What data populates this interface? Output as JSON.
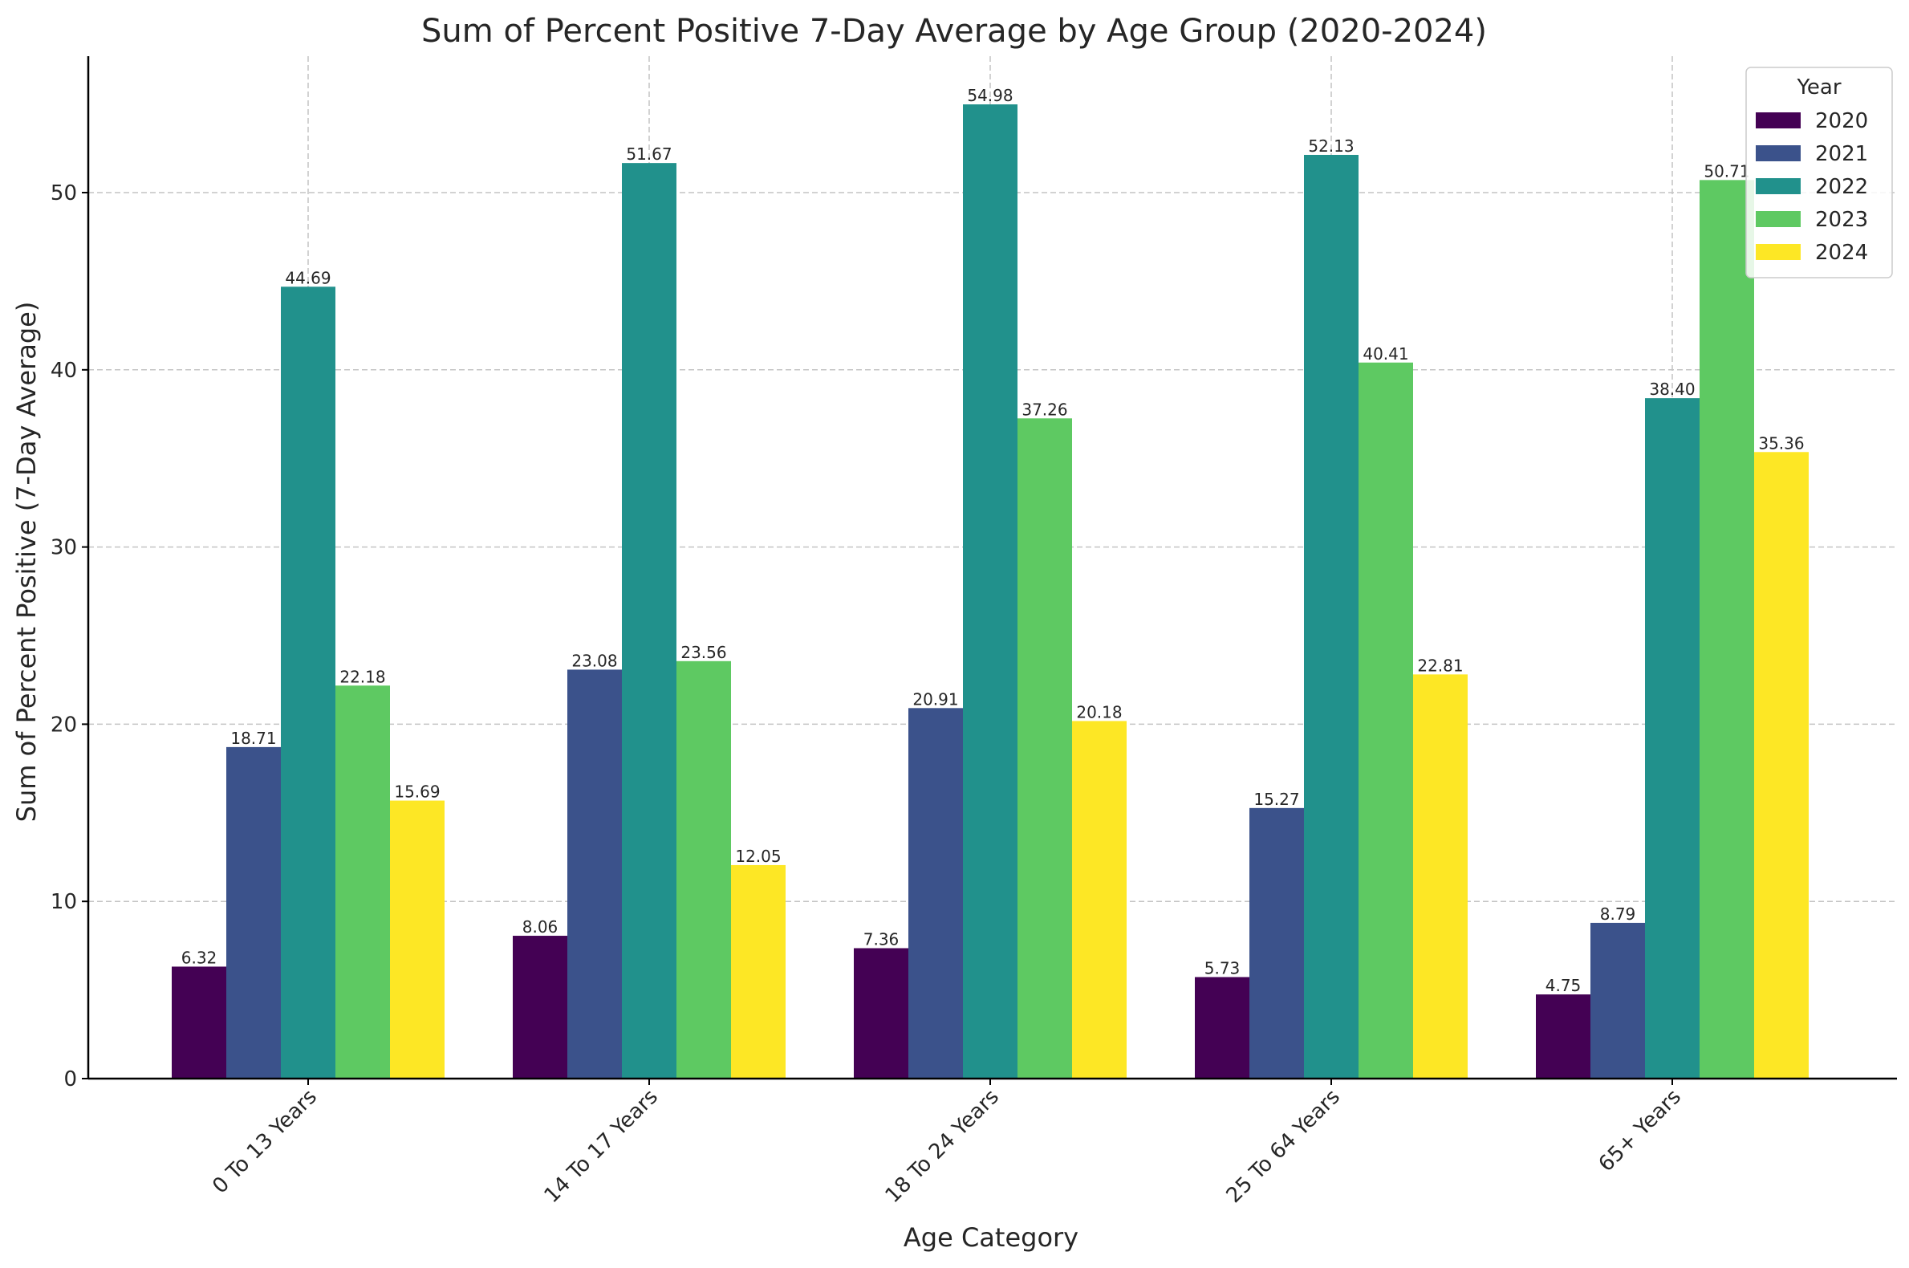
{
  "chart_data": {
    "type": "bar",
    "title": "Sum of Percent Positive 7-Day Average by Age Group (2020-2024)",
    "xlabel": "Age Category",
    "ylabel": "Sum of Percent Positive (7-Day Average)",
    "categories": [
      "0 To 13 Years",
      "14 To 17 Years",
      "18 To 24 Years",
      "25 To 64 Years",
      "65+ Years"
    ],
    "series": [
      {
        "name": "2020",
        "color": "#440154",
        "values": [
          6.32,
          8.06,
          7.36,
          5.73,
          4.75
        ],
        "labels": [
          "6.32",
          "8.06",
          "7.36",
          "5.73",
          "4.75"
        ]
      },
      {
        "name": "2021",
        "color": "#3b528b",
        "values": [
          18.71,
          23.08,
          20.91,
          15.27,
          8.79
        ],
        "labels": [
          "18.71",
          "23.08",
          "20.91",
          "15.27",
          "8.79"
        ]
      },
      {
        "name": "2022",
        "color": "#21918c",
        "values": [
          44.69,
          51.67,
          54.98,
          52.13,
          38.4
        ],
        "labels": [
          "44.69",
          "51.67",
          "54.98",
          "52.13",
          "38.40"
        ]
      },
      {
        "name": "2023",
        "color": "#5ec962",
        "values": [
          22.18,
          23.56,
          37.26,
          40.41,
          50.71
        ],
        "labels": [
          "22.18",
          "23.56",
          "37.26",
          "40.41",
          "50.71"
        ]
      },
      {
        "name": "2024",
        "color": "#fde725",
        "values": [
          15.69,
          12.05,
          20.18,
          22.81,
          35.36
        ],
        "labels": [
          "15.69",
          "12.05",
          "20.18",
          "22.81",
          "35.36"
        ]
      }
    ],
    "ylim": [
      0,
      57.7
    ],
    "yticks": [
      0,
      10,
      20,
      30,
      40,
      50
    ],
    "ytick_labels": [
      "0",
      "10",
      "20",
      "30",
      "40",
      "50"
    ],
    "grid": true,
    "legend": {
      "title": "Year",
      "placement": "top-right"
    }
  }
}
